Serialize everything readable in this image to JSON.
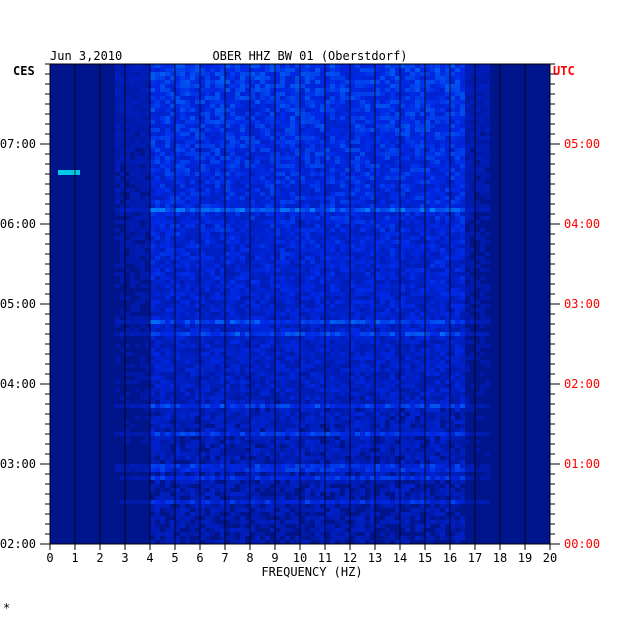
{
  "chart_data": {
    "type": "heatmap",
    "title": "OBER HHZ BW 01 (Oberstdorf)",
    "date": "Jun 3,2010",
    "left_timezone": "CES",
    "right_timezone": "UTC",
    "xlabel": "FREQUENCY (HZ)",
    "xlim": [
      0,
      20
    ],
    "x_ticks": [
      "0",
      "1",
      "2",
      "3",
      "4",
      "5",
      "6",
      "7",
      "8",
      "9",
      "10",
      "11",
      "12",
      "13",
      "14",
      "15",
      "16",
      "17",
      "18",
      "19",
      "20"
    ],
    "left_time_ticks": [
      "07:00",
      "06:00",
      "05:00",
      "04:00",
      "03:00",
      "02:00"
    ],
    "right_time_ticks": [
      "05:00",
      "04:00",
      "03:00",
      "02:00",
      "01:00",
      "00:00"
    ],
    "time_range_ces": [
      "02:00",
      "08:00"
    ],
    "colors": {
      "background": "#ffffff",
      "frame": "#000000",
      "utc_labels": "#ff0000",
      "low_amplitude": "#00148c",
      "high_amplitude": "#ffff00"
    }
  },
  "footnote": "*"
}
